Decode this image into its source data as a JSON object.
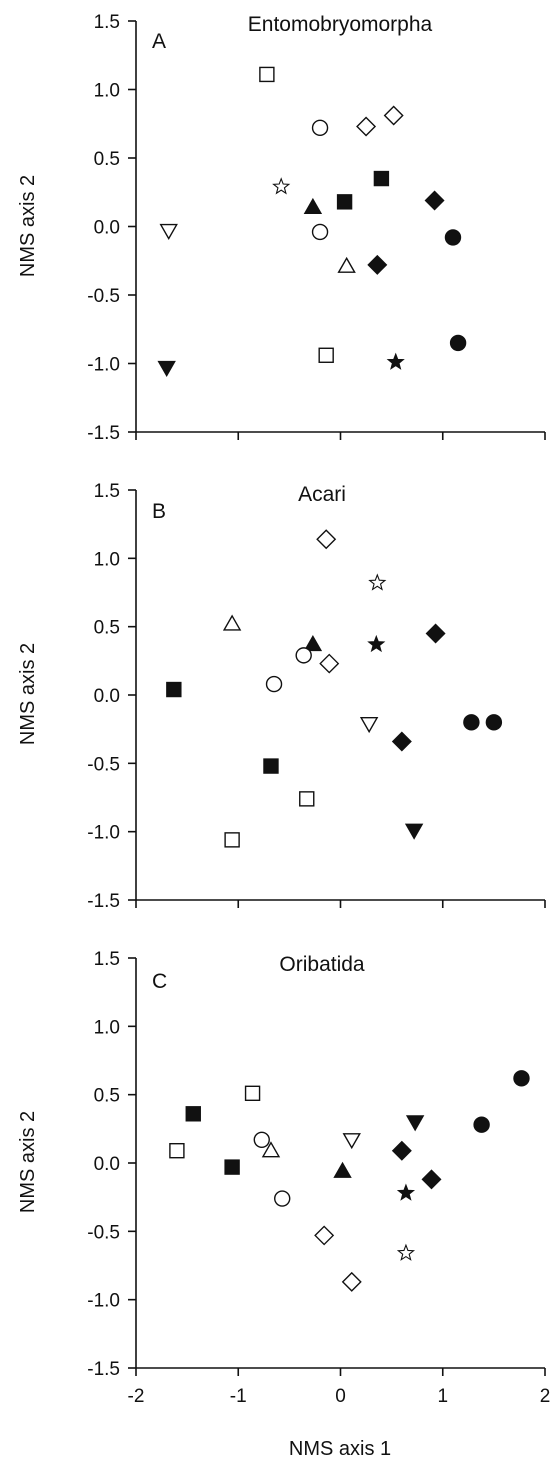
{
  "chart_data": [
    {
      "type": "scatter",
      "title": "Entomobryomorpha",
      "panel_label": "A",
      "xlabel": "",
      "ylabel": "NMS axis 2",
      "xlim": [
        -2,
        2
      ],
      "ylim": [
        -1.5,
        1.5
      ],
      "x_ticks": [
        -2,
        -1,
        0,
        1,
        2
      ],
      "y_ticks": [
        -1.5,
        -1.0,
        -0.5,
        0.0,
        0.5,
        1.0,
        1.5
      ],
      "x_tick_labels": [
        "",
        "",
        "",
        "",
        ""
      ],
      "y_tick_labels": [
        "-1.5",
        "-1.0",
        "-0.5",
        "0.0",
        "0.5",
        "1.0",
        "1.5"
      ],
      "points": [
        {
          "x": -0.72,
          "y": 1.11,
          "marker": "square-open"
        },
        {
          "x": -0.2,
          "y": 0.72,
          "marker": "circle-open"
        },
        {
          "x": 0.25,
          "y": 0.73,
          "marker": "diamond-open"
        },
        {
          "x": 0.52,
          "y": 0.81,
          "marker": "diamond-open"
        },
        {
          "x": -0.58,
          "y": 0.29,
          "marker": "star-open"
        },
        {
          "x": -0.27,
          "y": 0.14,
          "marker": "triangle-up-filled"
        },
        {
          "x": 0.04,
          "y": 0.18,
          "marker": "square-filled"
        },
        {
          "x": 0.4,
          "y": 0.35,
          "marker": "square-filled"
        },
        {
          "x": 0.92,
          "y": 0.19,
          "marker": "diamond-filled"
        },
        {
          "x": -1.68,
          "y": -0.03,
          "marker": "triangle-down-open"
        },
        {
          "x": -0.2,
          "y": -0.04,
          "marker": "circle-open"
        },
        {
          "x": 0.06,
          "y": -0.29,
          "marker": "triangle-up-open"
        },
        {
          "x": 0.36,
          "y": -0.28,
          "marker": "diamond-filled"
        },
        {
          "x": 1.1,
          "y": -0.08,
          "marker": "circle-filled"
        },
        {
          "x": -1.7,
          "y": -1.03,
          "marker": "triangle-down-filled"
        },
        {
          "x": -0.14,
          "y": -0.94,
          "marker": "square-open"
        },
        {
          "x": 0.54,
          "y": -0.99,
          "marker": "star-filled"
        },
        {
          "x": 1.15,
          "y": -0.85,
          "marker": "circle-filled"
        }
      ]
    },
    {
      "type": "scatter",
      "title": "Acari",
      "panel_label": "B",
      "xlabel": "",
      "ylabel": "NMS axis 2",
      "xlim": [
        -2,
        2
      ],
      "ylim": [
        -1.5,
        1.5
      ],
      "x_ticks": [
        -2,
        -1,
        0,
        1,
        2
      ],
      "y_ticks": [
        -1.5,
        -1.0,
        -0.5,
        0.0,
        0.5,
        1.0,
        1.5
      ],
      "x_tick_labels": [
        "",
        "",
        "",
        "",
        ""
      ],
      "y_tick_labels": [
        "-1.5",
        "-1.0",
        "-0.5",
        "0.0",
        "0.5",
        "1.0",
        "1.5"
      ],
      "points": [
        {
          "x": -0.14,
          "y": 1.14,
          "marker": "diamond-open"
        },
        {
          "x": 0.36,
          "y": 0.82,
          "marker": "star-open"
        },
        {
          "x": -1.06,
          "y": 0.52,
          "marker": "triangle-up-open"
        },
        {
          "x": -0.27,
          "y": 0.37,
          "marker": "triangle-up-filled"
        },
        {
          "x": -0.36,
          "y": 0.29,
          "marker": "circle-open"
        },
        {
          "x": -0.11,
          "y": 0.23,
          "marker": "diamond-open"
        },
        {
          "x": 0.35,
          "y": 0.37,
          "marker": "star-filled"
        },
        {
          "x": 0.93,
          "y": 0.45,
          "marker": "diamond-filled"
        },
        {
          "x": -1.63,
          "y": 0.04,
          "marker": "square-filled"
        },
        {
          "x": -0.65,
          "y": 0.08,
          "marker": "circle-open"
        },
        {
          "x": 0.28,
          "y": -0.21,
          "marker": "triangle-down-open"
        },
        {
          "x": 0.6,
          "y": -0.34,
          "marker": "diamond-filled"
        },
        {
          "x": 1.28,
          "y": -0.2,
          "marker": "circle-filled"
        },
        {
          "x": 1.5,
          "y": -0.2,
          "marker": "circle-filled"
        },
        {
          "x": -0.68,
          "y": -0.52,
          "marker": "square-filled"
        },
        {
          "x": -0.33,
          "y": -0.76,
          "marker": "square-open"
        },
        {
          "x": -1.06,
          "y": -1.06,
          "marker": "square-open"
        },
        {
          "x": 0.72,
          "y": -0.99,
          "marker": "triangle-down-filled"
        }
      ]
    },
    {
      "type": "scatter",
      "title": "Oribatida",
      "panel_label": "C",
      "xlabel": "NMS axis 1",
      "ylabel": "NMS axis 2",
      "xlim": [
        -2,
        2
      ],
      "ylim": [
        -1.5,
        1.5
      ],
      "x_ticks": [
        -2,
        -1,
        0,
        1,
        2
      ],
      "y_ticks": [
        -1.5,
        -1.0,
        -0.5,
        0.0,
        0.5,
        1.0,
        1.5
      ],
      "x_tick_labels": [
        "-2",
        "-1",
        "0",
        "1",
        "2"
      ],
      "y_tick_labels": [
        "-1.5",
        "-1.0",
        "-0.5",
        "0.0",
        "0.5",
        "1.0",
        "1.5"
      ],
      "points": [
        {
          "x": -1.6,
          "y": 0.09,
          "marker": "square-open"
        },
        {
          "x": -1.44,
          "y": 0.36,
          "marker": "square-filled"
        },
        {
          "x": -0.86,
          "y": 0.51,
          "marker": "square-open"
        },
        {
          "x": -1.06,
          "y": -0.03,
          "marker": "square-filled"
        },
        {
          "x": -0.77,
          "y": 0.17,
          "marker": "circle-open"
        },
        {
          "x": -0.68,
          "y": 0.09,
          "marker": "triangle-up-open"
        },
        {
          "x": -0.57,
          "y": -0.26,
          "marker": "circle-open"
        },
        {
          "x": 0.02,
          "y": -0.06,
          "marker": "triangle-up-filled"
        },
        {
          "x": 0.11,
          "y": 0.17,
          "marker": "triangle-down-open"
        },
        {
          "x": -0.16,
          "y": -0.53,
          "marker": "diamond-open"
        },
        {
          "x": 0.11,
          "y": -0.87,
          "marker": "diamond-open"
        },
        {
          "x": 0.6,
          "y": 0.09,
          "marker": "diamond-filled"
        },
        {
          "x": 0.89,
          "y": -0.12,
          "marker": "diamond-filled"
        },
        {
          "x": 0.64,
          "y": -0.22,
          "marker": "star-filled"
        },
        {
          "x": 0.64,
          "y": -0.66,
          "marker": "star-open"
        },
        {
          "x": 0.73,
          "y": 0.3,
          "marker": "triangle-down-filled"
        },
        {
          "x": 1.38,
          "y": 0.28,
          "marker": "circle-filled"
        },
        {
          "x": 1.77,
          "y": 0.62,
          "marker": "circle-filled"
        }
      ]
    }
  ]
}
